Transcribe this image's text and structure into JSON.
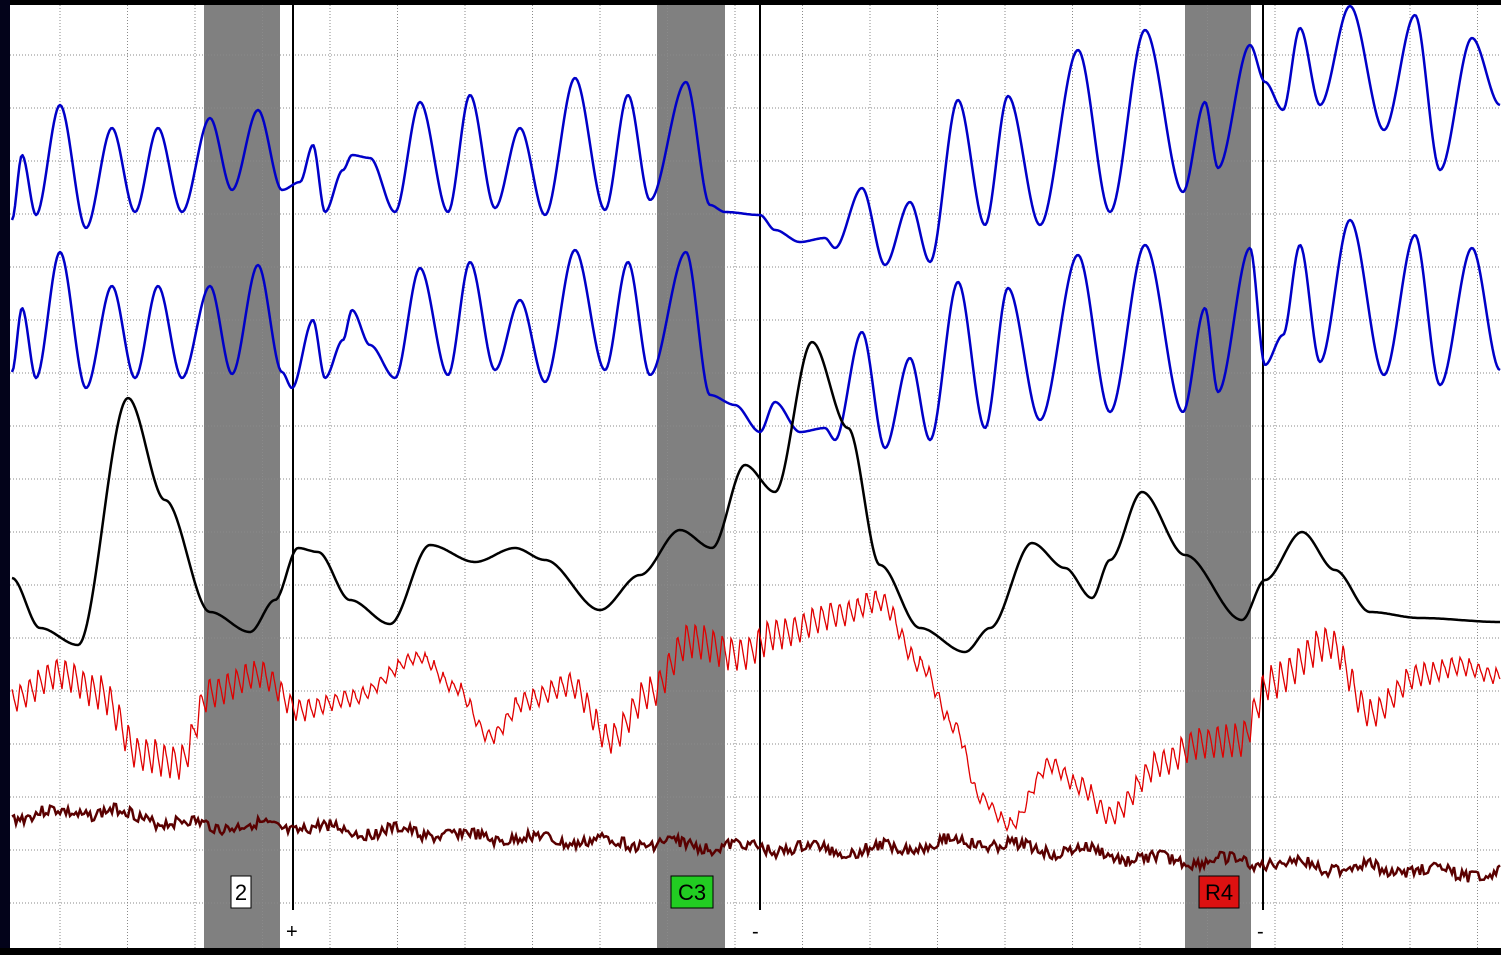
{
  "colors": {
    "background": "#000000",
    "paper": "#ffffff",
    "grid": "#8a8a8a",
    "shade": "#808080",
    "pneumo": "#0000c8",
    "eda": "#000000",
    "cardio": "#e00000",
    "motion": "#5a0000",
    "question_neutral": "#ffffff",
    "question_control": "#22cc22",
    "question_relevant": "#dd1111"
  },
  "chart_data": {
    "type": "line",
    "title": "",
    "xlabel": "",
    "ylabel": "",
    "grid": true,
    "legend": "none",
    "series_colors": [
      "pneumo",
      "pneumo",
      "eda",
      "cardio",
      "motion"
    ],
    "question_windows": [
      {
        "label": "2",
        "style": "question_neutral",
        "answer": "+"
      },
      {
        "label": "C3",
        "style": "question_control",
        "answer": "-"
      },
      {
        "label": "R4",
        "style": "question_relevant",
        "answer": "-"
      }
    ]
  }
}
